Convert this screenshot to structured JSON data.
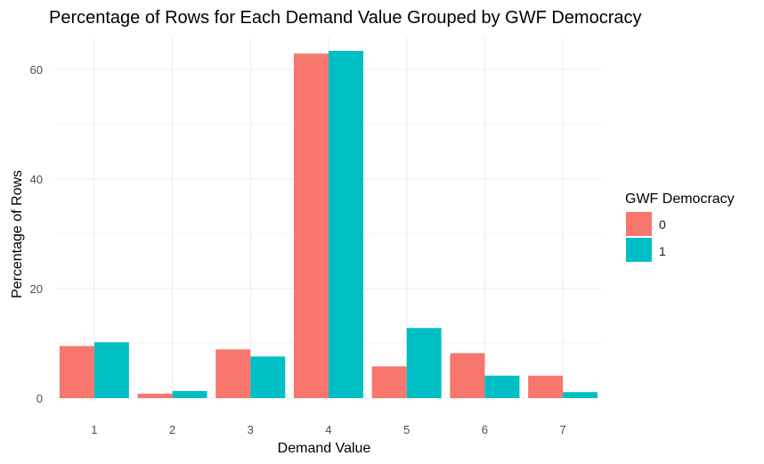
{
  "chart_data": {
    "type": "bar",
    "title": "Percentage of Rows for Each Demand Value Grouped by GWF Democracy",
    "xlabel": "Demand Value",
    "ylabel": "Percentage of Rows",
    "categories": [
      "1",
      "2",
      "3",
      "4",
      "5",
      "6",
      "7"
    ],
    "series": [
      {
        "name": "0",
        "color": "#F8766D",
        "values": [
          9.5,
          0.8,
          8.9,
          62.9,
          5.8,
          8.2,
          4.1
        ]
      },
      {
        "name": "1",
        "color": "#00BFC4",
        "values": [
          10.2,
          1.3,
          7.6,
          63.4,
          12.8,
          4.1,
          1.1
        ]
      }
    ],
    "yticks": [
      0,
      20,
      40,
      60
    ],
    "ylim": [
      0,
      65
    ],
    "grid": true,
    "legend": {
      "title": "GWF Democracy",
      "position": "right"
    }
  }
}
